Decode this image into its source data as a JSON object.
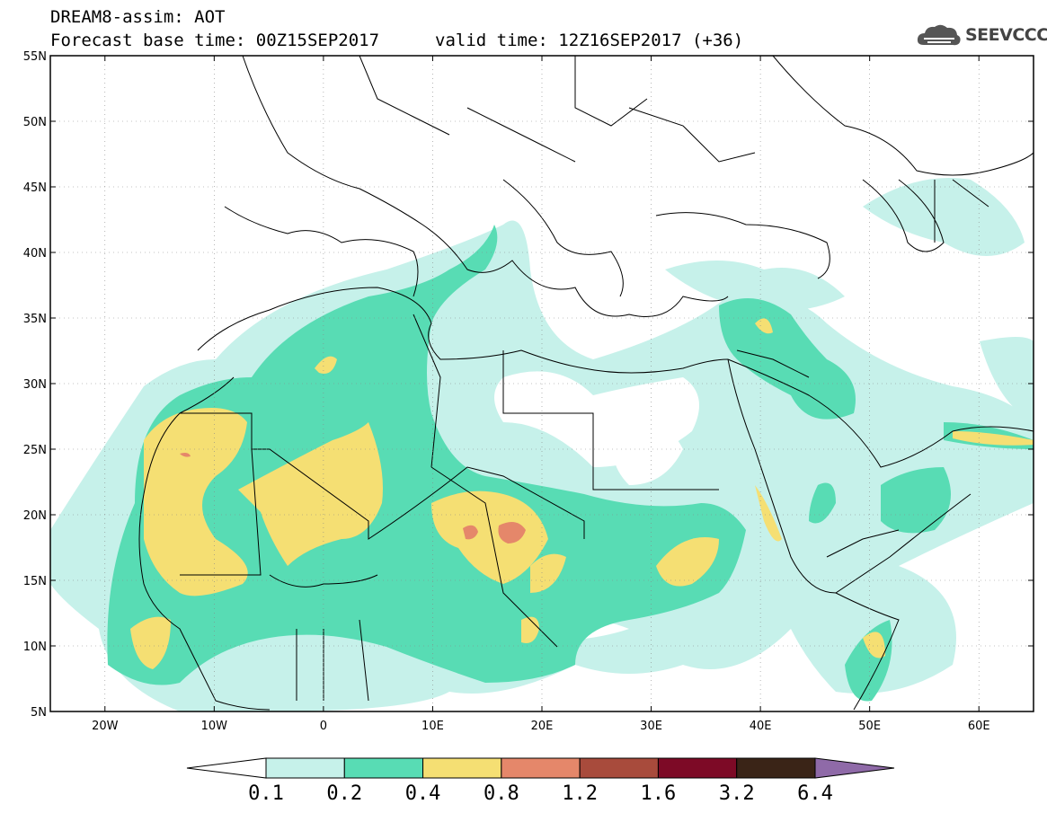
{
  "title": {
    "line1": "DREAM8-assim: AOT",
    "line2": "Forecast base time: 00Z15SEP2017",
    "valid": "valid time: 12Z16SEP2017 (+36)"
  },
  "logo": {
    "text": "SEEVCCC",
    "icon": "cloud-icon"
  },
  "map": {
    "lon_range": [
      -25,
      65
    ],
    "lat_range": [
      5,
      55
    ],
    "x_ticks": [
      {
        "lon": -20,
        "label": "20W"
      },
      {
        "lon": -10,
        "label": "10W"
      },
      {
        "lon": 0,
        "label": "0"
      },
      {
        "lon": 10,
        "label": "10E"
      },
      {
        "lon": 20,
        "label": "20E"
      },
      {
        "lon": 30,
        "label": "30E"
      },
      {
        "lon": 40,
        "label": "40E"
      },
      {
        "lon": 50,
        "label": "50E"
      },
      {
        "lon": 60,
        "label": "60E"
      }
    ],
    "y_ticks": [
      {
        "lat": 55,
        "label": "55N"
      },
      {
        "lat": 50,
        "label": "50N"
      },
      {
        "lat": 45,
        "label": "45N"
      },
      {
        "lat": 40,
        "label": "40N"
      },
      {
        "lat": 35,
        "label": "35N"
      },
      {
        "lat": 30,
        "label": "30N"
      },
      {
        "lat": 25,
        "label": "25N"
      },
      {
        "lat": 20,
        "label": "20N"
      },
      {
        "lat": 15,
        "label": "15N"
      },
      {
        "lat": 10,
        "label": "10N"
      },
      {
        "lat": 5,
        "label": "5N"
      }
    ]
  },
  "colorbar": {
    "levels": [
      "0.1",
      "0.2",
      "0.4",
      "0.8",
      "1.2",
      "1.6",
      "3.2",
      "6.4"
    ],
    "colors": [
      "#ffffff",
      "#c6f1ea",
      "#58dcb4",
      "#f5df73",
      "#e5876a",
      "#a84b3c",
      "#7d0a26",
      "#3a2417",
      "#8f6aa8"
    ]
  },
  "colors": {
    "lt01": "#ffffff",
    "c01_02": "#c6f1ea",
    "c02_04": "#58dcb4",
    "c04_08": "#f5df73",
    "c08_12": "#e5876a"
  }
}
